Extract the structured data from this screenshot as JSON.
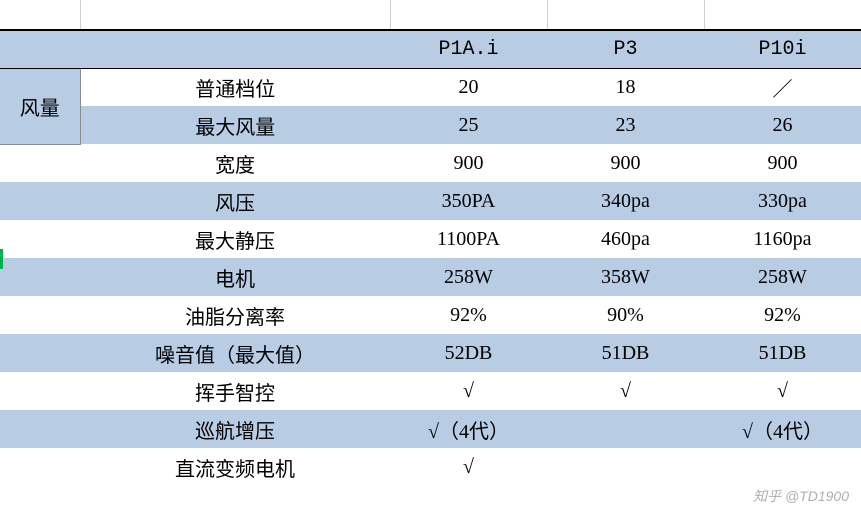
{
  "table": {
    "banded_color": "#b8cce4",
    "white_color": "#ffffff",
    "border_color": "#000000",
    "font_family": "SimSun",
    "font_size": 20,
    "columns": {
      "label_width": 80,
      "param_width": 310,
      "val_width": 157
    },
    "header": {
      "c1": "",
      "c2": "",
      "p1": "P1A.i",
      "p2": "P3",
      "p3": "P10i"
    },
    "side_label": "风量",
    "rows": [
      {
        "band": false,
        "param": "普通档位",
        "v1": "20",
        "v2": "18",
        "v3": "／"
      },
      {
        "band": true,
        "param": "最大风量",
        "v1": "25",
        "v2": "23",
        "v3": "26"
      },
      {
        "band": false,
        "param": "宽度",
        "v1": "900",
        "v2": "900",
        "v3": "900"
      },
      {
        "band": true,
        "param": "风压",
        "v1": "350PA",
        "v2": "340pa",
        "v3": "330pa"
      },
      {
        "band": false,
        "param": "最大静压",
        "v1": "1100PA",
        "v2": "460pa",
        "v3": "1160pa"
      },
      {
        "band": true,
        "param": "电机",
        "v1": "258W",
        "v2": "358W",
        "v3": "258W"
      },
      {
        "band": false,
        "param": "油脂分离率",
        "v1": "92%",
        "v2": "90%",
        "v3": "92%"
      },
      {
        "band": true,
        "param": "噪音值（最大值）",
        "v1": "52DB",
        "v2": "51DB",
        "v3": "51DB"
      },
      {
        "band": false,
        "param": "挥手智控",
        "v1": "√",
        "v2": "√",
        "v3": "√"
      },
      {
        "band": true,
        "param": "巡航增压",
        "v1": "√（4代）",
        "v2": "",
        "v3": "√（4代）"
      },
      {
        "band": false,
        "param": "直流变频电机",
        "v1": "√",
        "v2": "",
        "v3": ""
      }
    ]
  },
  "watermark": "知乎 @TD1900"
}
